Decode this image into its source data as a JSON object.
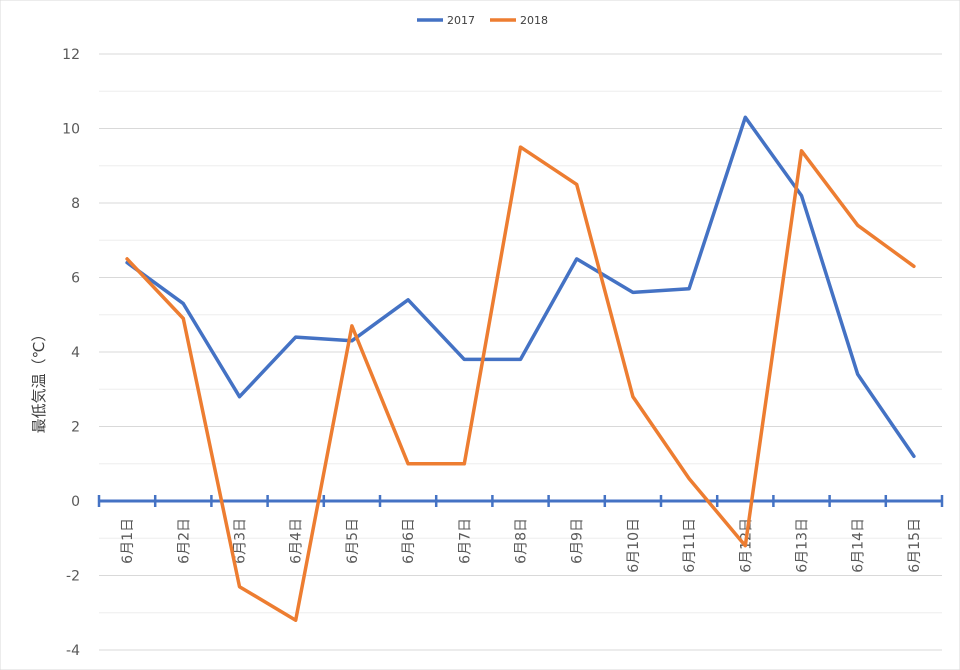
{
  "chart_data": {
    "type": "line",
    "ylabel": "最低気温（℃）",
    "categories": [
      "6月1日",
      "6月2日",
      "6月3日",
      "6月4日",
      "6月5日",
      "6月6日",
      "6月7日",
      "6月8日",
      "6月9日",
      "6月10日",
      "6月11日",
      "6月12日",
      "6月13日",
      "6月14日",
      "6月15日"
    ],
    "series": [
      {
        "name": "2017",
        "color": "#4472C4",
        "values": [
          6.4,
          5.3,
          2.8,
          4.4,
          4.3,
          5.4,
          3.8,
          3.8,
          6.5,
          5.6,
          5.7,
          10.3,
          8.2,
          3.4,
          1.2
        ]
      },
      {
        "name": "2018",
        "color": "#ED7D31",
        "values": [
          6.5,
          4.9,
          -2.3,
          -3.2,
          4.7,
          1.0,
          1.0,
          9.5,
          8.5,
          2.8,
          0.6,
          -1.2,
          9.4,
          7.4,
          6.3
        ]
      }
    ],
    "ylim": [
      -4,
      12
    ],
    "yticks": [
      -4,
      -2,
      0,
      2,
      4,
      6,
      8,
      10,
      12
    ],
    "grid": true,
    "legend": "top"
  }
}
